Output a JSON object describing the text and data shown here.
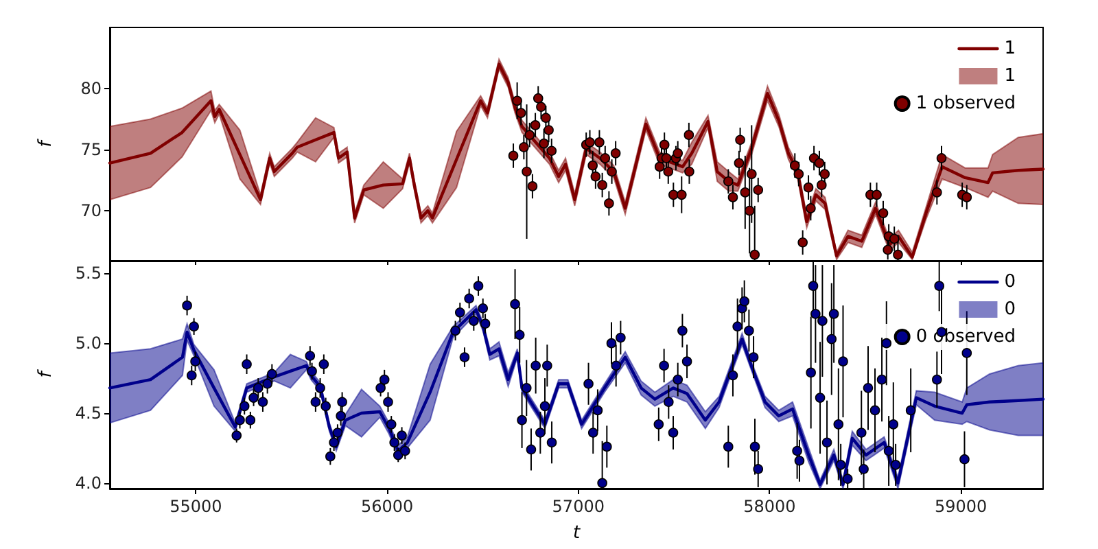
{
  "chart_data": [
    {
      "type": "line",
      "ylabel": "f",
      "xlim": [
        54550,
        59430
      ],
      "ylim": [
        65.9,
        85
      ],
      "xticks": [
        55000,
        56000,
        57000,
        58000,
        59000
      ],
      "yticks": [
        70,
        75,
        80
      ],
      "tick_labels": "y",
      "legend": "top right",
      "series": [
        {
          "name": "1",
          "type": "line",
          "color": "#800000",
          "marker": "none",
          "x": [
            54550,
            54763,
            54928,
            55079,
            55099,
            55122,
            55230,
            55338,
            55386,
            55410,
            55504,
            55530,
            55626,
            55722,
            55746,
            55791,
            55830,
            55878,
            55980,
            56081,
            56117,
            56141,
            56177,
            56213,
            56237,
            56363,
            56489,
            56525,
            56585,
            56633,
            56669,
            56705,
            56849,
            56897,
            56933,
            56981,
            57041,
            57113,
            57185,
            57245,
            57353,
            57425,
            57545,
            57593,
            57678,
            57726,
            57786,
            57834,
            57906,
            57989,
            58050,
            58098,
            58146,
            58194,
            58242,
            58290,
            58350,
            58410,
            58482,
            58554,
            58626,
            58674,
            58746,
            58818,
            58902,
            59022,
            59142,
            59166,
            59300,
            59430
          ],
          "values": [
            73.9,
            74.7,
            76.4,
            79.0,
            77.7,
            78.3,
            74.6,
            70.9,
            74.3,
            73.2,
            74.7,
            75.2,
            75.8,
            76.4,
            74.3,
            74.8,
            69.4,
            71.7,
            72.1,
            72.2,
            74.3,
            72.2,
            69.4,
            70.0,
            69.4,
            74.2,
            79.0,
            78.0,
            82.0,
            80.5,
            78.4,
            76.9,
            74.3,
            72.8,
            73.8,
            70.9,
            75.1,
            74.3,
            73.2,
            70.2,
            77.1,
            74.3,
            73.6,
            74.7,
            77.3,
            73.2,
            72.4,
            72.1,
            75.1,
            79.6,
            77.3,
            74.7,
            73.2,
            69.1,
            71.3,
            70.6,
            66.3,
            67.9,
            67.5,
            70.2,
            67.2,
            67.9,
            66.2,
            69.8,
            73.6,
            72.7,
            72.3,
            73.1,
            73.3,
            73.4
          ],
          "lower": [
            70.9,
            71.9,
            74.4,
            78.2,
            77.2,
            77.9,
            72.6,
            70.5,
            73.9,
            72.8,
            74.3,
            74.8,
            74.0,
            76.0,
            73.9,
            74.4,
            69.0,
            71.3,
            70.2,
            71.8,
            73.9,
            71.8,
            69.0,
            69.6,
            69.0,
            71.9,
            78.6,
            77.6,
            81.6,
            80.1,
            78.0,
            76.4,
            73.8,
            72.3,
            73.3,
            70.4,
            74.6,
            73.8,
            72.7,
            69.7,
            76.6,
            73.8,
            73.1,
            73.8,
            76.8,
            72.4,
            71.6,
            71.6,
            74.6,
            79.0,
            76.8,
            74.2,
            72.7,
            68.6,
            70.8,
            70.1,
            66.0,
            67.4,
            67.0,
            69.7,
            66.7,
            67.4,
            66.0,
            69.3,
            72.6,
            71.9,
            71.1,
            71.6,
            70.6,
            70.5
          ],
          "upper": [
            76.9,
            77.5,
            78.4,
            79.8,
            78.2,
            78.7,
            76.6,
            71.3,
            74.7,
            73.6,
            75.1,
            75.6,
            77.6,
            76.8,
            74.7,
            75.2,
            69.8,
            72.1,
            74.0,
            72.6,
            74.7,
            72.6,
            69.8,
            70.4,
            69.8,
            76.5,
            79.4,
            78.4,
            82.4,
            80.9,
            78.8,
            77.4,
            74.8,
            73.3,
            74.3,
            71.4,
            75.6,
            74.8,
            73.7,
            70.7,
            77.6,
            74.8,
            74.1,
            75.6,
            77.8,
            74.0,
            73.2,
            72.6,
            75.6,
            80.2,
            77.8,
            75.2,
            73.7,
            69.6,
            71.8,
            71.1,
            66.6,
            68.4,
            68.0,
            70.7,
            67.7,
            68.4,
            66.6,
            70.3,
            74.6,
            73.5,
            73.5,
            74.6,
            76.0,
            76.3
          ]
        },
        {
          "name": "1 observed",
          "type": "scatter",
          "color": "#800000",
          "marker": "circle",
          "x": [
            56660,
            56680,
            56700,
            56715,
            56730,
            56745,
            56760,
            56775,
            56790,
            56805,
            56820,
            56830,
            56845,
            56860,
            57041,
            57060,
            57075,
            57090,
            57110,
            57125,
            57140,
            57160,
            57175,
            57195,
            57425,
            57435,
            57450,
            57460,
            57470,
            57497,
            57510,
            57520,
            57540,
            57578,
            57580,
            57784,
            57808,
            57840,
            57846,
            57872,
            57895,
            57906,
            57922,
            57940,
            58132,
            58152,
            58173,
            58203,
            58215,
            58232,
            58260,
            58272,
            58288,
            58527,
            58560,
            58594,
            58618,
            58623,
            58652,
            58671,
            58875,
            58899,
            59007,
            59031
          ],
          "values": [
            74.5,
            79.0,
            78.0,
            75.2,
            73.2,
            76.2,
            72.0,
            77.0,
            79.2,
            78.5,
            75.5,
            77.6,
            76.6,
            74.9,
            75.4,
            75.6,
            73.7,
            72.8,
            75.6,
            72.1,
            74.3,
            70.6,
            73.2,
            74.7,
            73.6,
            74.3,
            75.4,
            74.3,
            73.2,
            71.3,
            74.3,
            74.7,
            71.3,
            76.2,
            73.2,
            72.4,
            71.1,
            73.9,
            75.8,
            71.5,
            70.0,
            73.0,
            66.4,
            71.7,
            73.7,
            73.0,
            67.4,
            71.9,
            70.2,
            74.3,
            73.9,
            72.1,
            73.0,
            71.3,
            71.3,
            69.8,
            66.8,
            67.9,
            67.7,
            66.4,
            71.5,
            74.3,
            71.3,
            71.1
          ],
          "errors": [
            1.0,
            1.5,
            1.0,
            1.0,
            5.5,
            1.0,
            1.0,
            1.0,
            1.0,
            1.0,
            1.2,
            1.0,
            1.0,
            1.0,
            1.0,
            1.0,
            1.2,
            1.0,
            1.0,
            1.0,
            1.0,
            1.0,
            1.0,
            1.0,
            1.0,
            1.0,
            1.0,
            1.0,
            1.0,
            1.0,
            1.0,
            1.0,
            1.5,
            1.0,
            1.0,
            1.0,
            1.0,
            1.0,
            1.0,
            3.0,
            3.5,
            4.0,
            [
              65.9,
              70.4
            ],
            1.0,
            1.0,
            1.0,
            1.0,
            1.0,
            1.0,
            1.0,
            1.0,
            1.0,
            1.0,
            1.0,
            1.0,
            1.0,
            0.8,
            1.0,
            1.0,
            [
              65.9,
              68.0
            ],
            1.0,
            1.0,
            1.0,
            1.0
          ]
        }
      ]
    },
    {
      "type": "line",
      "xlabel": "t",
      "ylabel": "f",
      "xlim": [
        54550,
        59430
      ],
      "ylim": [
        3.96,
        5.59
      ],
      "xticks": [
        55000,
        56000,
        57000,
        58000,
        59000
      ],
      "yticks": [
        {
          "value": 4,
          "label": "4.0"
        },
        4.5,
        {
          "value": 5,
          "label": "5.0"
        },
        5.5
      ],
      "legend": "top right",
      "series": [
        {
          "name": "0",
          "type": "line",
          "color": "#00008b",
          "marker": "none",
          "x": [
            54550,
            54763,
            54930,
            54954,
            54990,
            55095,
            55206,
            55266,
            55410,
            55494,
            55578,
            55602,
            55650,
            55698,
            55734,
            55782,
            55866,
            55962,
            56010,
            56058,
            56106,
            56225,
            56345,
            56465,
            56501,
            56537,
            56585,
            56633,
            56681,
            56705,
            56825,
            56897,
            56945,
            57017,
            57137,
            57245,
            57328,
            57400,
            57496,
            57568,
            57664,
            57736,
            57856,
            57904,
            57976,
            58048,
            58120,
            58204,
            58264,
            58336,
            58384,
            58432,
            58504,
            58599,
            58671,
            58767,
            58863,
            59007,
            59031,
            59150,
            59300,
            59430
          ],
          "values": [
            4.68,
            4.74,
            4.9,
            5.08,
            4.95,
            4.68,
            4.4,
            4.68,
            4.76,
            4.8,
            4.84,
            4.77,
            4.69,
            4.4,
            4.26,
            4.45,
            4.5,
            4.51,
            4.39,
            4.23,
            4.29,
            4.65,
            5.08,
            5.24,
            5.12,
            4.92,
            4.96,
            4.74,
            4.93,
            4.68,
            4.42,
            4.71,
            4.71,
            4.42,
            4.68,
            4.9,
            4.68,
            4.6,
            4.68,
            4.64,
            4.45,
            4.58,
            5.03,
            4.84,
            4.58,
            4.48,
            4.53,
            4.2,
            3.99,
            4.2,
            3.99,
            4.32,
            4.2,
            4.29,
            4.0,
            4.61,
            4.55,
            4.5,
            4.56,
            4.58,
            4.59,
            4.6
          ],
          "lower": [
            4.43,
            4.52,
            4.77,
            5.02,
            4.91,
            4.55,
            4.37,
            4.65,
            4.73,
            4.68,
            4.81,
            4.74,
            4.66,
            4.37,
            4.23,
            4.41,
            4.33,
            4.47,
            4.35,
            4.19,
            4.25,
            4.45,
            5.04,
            5.21,
            5.09,
            4.88,
            4.91,
            4.69,
            4.9,
            4.65,
            4.39,
            4.68,
            4.68,
            4.39,
            4.65,
            4.86,
            4.63,
            4.55,
            4.62,
            4.58,
            4.39,
            4.54,
            4.99,
            4.81,
            4.54,
            4.44,
            4.48,
            4.15,
            3.96,
            4.16,
            3.96,
            4.27,
            4.16,
            4.25,
            3.96,
            4.56,
            4.45,
            4.42,
            4.44,
            4.38,
            4.34,
            4.34
          ],
          "upper": [
            4.93,
            4.96,
            5.03,
            5.14,
            4.99,
            4.81,
            4.43,
            4.71,
            4.79,
            4.92,
            4.87,
            4.8,
            4.72,
            4.43,
            4.29,
            4.49,
            4.67,
            4.55,
            4.43,
            4.27,
            4.33,
            4.85,
            5.12,
            5.27,
            5.15,
            4.96,
            5.01,
            4.79,
            4.96,
            4.71,
            4.45,
            4.74,
            4.74,
            4.45,
            4.71,
            4.94,
            4.73,
            4.65,
            4.74,
            4.7,
            4.51,
            4.62,
            5.07,
            4.87,
            4.62,
            4.52,
            4.58,
            4.25,
            4.02,
            4.24,
            4.02,
            4.37,
            4.24,
            4.33,
            4.04,
            4.66,
            4.65,
            4.58,
            4.68,
            4.78,
            4.84,
            4.86
          ]
        },
        {
          "name": "0 observed",
          "type": "scatter",
          "color": "#00008b",
          "marker": "circle",
          "x": [
            54954,
            54978,
            54990,
            54997,
            55213,
            55230,
            55254,
            55266,
            55285,
            55302,
            55326,
            55350,
            55374,
            55398,
            55597,
            55607,
            55626,
            55650,
            55669,
            55679,
            55703,
            55722,
            55741,
            55758,
            55765,
            55966,
            55986,
            56005,
            56022,
            56038,
            56058,
            56077,
            56094,
            56357,
            56381,
            56405,
            56429,
            56453,
            56477,
            56501,
            56513,
            56669,
            56693,
            56705,
            56729,
            56753,
            56777,
            56801,
            56825,
            56837,
            56861,
            57053,
            57077,
            57101,
            57125,
            57149,
            57173,
            57197,
            57221,
            57420,
            57448,
            57472,
            57496,
            57520,
            57544,
            57568,
            57784,
            57808,
            57832,
            57856,
            57868,
            57892,
            57916,
            57923,
            57940,
            58144,
            58156,
            58216,
            58228,
            58240,
            58264,
            58276,
            58300,
            58324,
            58336,
            58360,
            58372,
            58384,
            58408,
            58480,
            58492,
            58515,
            58551,
            58587,
            58611,
            58623,
            58647,
            58659,
            58738,
            58875,
            58887,
            58899,
            59019,
            59031
          ],
          "values": [
            5.27,
            4.77,
            5.12,
            4.87,
            4.34,
            4.45,
            4.55,
            4.85,
            4.45,
            4.61,
            4.68,
            4.58,
            4.71,
            4.78,
            4.91,
            4.8,
            4.58,
            4.68,
            4.85,
            4.55,
            4.19,
            4.29,
            4.36,
            4.48,
            4.58,
            4.68,
            4.74,
            4.58,
            4.42,
            4.29,
            4.2,
            4.34,
            4.23,
            5.09,
            5.22,
            4.9,
            5.32,
            5.16,
            5.41,
            5.25,
            5.14,
            5.28,
            5.06,
            4.45,
            4.68,
            4.24,
            4.84,
            4.36,
            4.55,
            4.84,
            4.29,
            4.71,
            4.36,
            4.52,
            4.0,
            4.26,
            5.0,
            4.84,
            5.04,
            4.42,
            4.84,
            4.58,
            4.36,
            4.74,
            5.09,
            4.87,
            4.26,
            4.77,
            5.12,
            5.25,
            5.3,
            5.09,
            4.9,
            4.26,
            4.1,
            4.23,
            4.16,
            4.79,
            5.41,
            5.21,
            4.61,
            5.16,
            4.29,
            5.03,
            5.21,
            4.42,
            4.13,
            4.87,
            4.03,
            4.36,
            4.1,
            4.68,
            4.52,
            4.74,
            5.0,
            4.23,
            4.42,
            4.13,
            4.52,
            4.74,
            5.41,
            5.08,
            4.17,
            4.93
          ],
          "errors": [
            0.07,
            0.07,
            0.06,
            0.07,
            0.05,
            0.06,
            0.06,
            0.07,
            0.06,
            0.06,
            0.07,
            0.07,
            0.07,
            0.07,
            0.07,
            0.06,
            0.07,
            0.07,
            0.07,
            0.06,
            0.06,
            0.06,
            0.06,
            0.07,
            0.07,
            0.06,
            0.07,
            0.07,
            0.06,
            0.06,
            0.05,
            0.06,
            0.06,
            0.07,
            0.07,
            0.07,
            0.07,
            0.07,
            0.07,
            0.07,
            0.07,
            0.25,
            0.2,
            0.2,
            0.2,
            0.15,
            0.2,
            0.15,
            0.2,
            0.15,
            0.15,
            0.15,
            0.15,
            0.15,
            [
              3.96,
              4.3
            ],
            0.15,
            0.15,
            0.15,
            0.12,
            0.12,
            0.12,
            0.12,
            0.12,
            0.12,
            0.12,
            0.12,
            0.15,
            0.15,
            0.2,
            0.15,
            0.15,
            0.15,
            0.15,
            0.2,
            0.13,
            0.2,
            0.15,
            0.4,
            0.18,
            0.35,
            0.4,
            0.4,
            0.3,
            0.4,
            0.35,
            0.4,
            0.15,
            0.4,
            0.07,
            0.3,
            0.14,
            0.3,
            0.3,
            0.3,
            0.3,
            0.25,
            0.3,
            0.15,
            0.3,
            0.2,
            0.18,
            0.3,
            0.2,
            0.3
          ]
        }
      ]
    }
  ]
}
